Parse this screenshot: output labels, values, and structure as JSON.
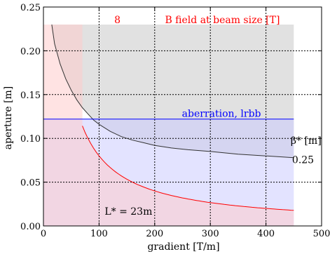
{
  "chart_data": {
    "type": "area",
    "xlabel": "gradient [T/m]",
    "ylabel": "aperture [m]",
    "xlim": [
      0,
      500
    ],
    "ylim": [
      0,
      0.25
    ],
    "xticks": [
      0,
      100,
      200,
      300,
      400,
      500
    ],
    "yticks": [
      0.0,
      0.05,
      0.1,
      0.15,
      0.2,
      0.25
    ],
    "xtick_labels": [
      "0",
      "100",
      "200",
      "300",
      "400",
      "500"
    ],
    "ytick_labels": [
      "0.00",
      "0.05",
      "0.10",
      "0.15",
      "0.20",
      "0.25"
    ],
    "grid": true,
    "series": [
      {
        "name": "B field at beam size [T]",
        "label": "8",
        "color": "#ff0000",
        "formula": "aperture = 8 / gradient",
        "x_range": [
          70,
          450
        ],
        "fill": "#ffcccc"
      },
      {
        "name": "aberration, lrbb",
        "color": "#0000ff",
        "y": 0.122,
        "x_range": [
          0,
          450
        ],
        "fill": "#ccccff"
      },
      {
        "name": "β* [m]",
        "label": "0.25",
        "color": "#333333",
        "x": [
          15,
          20,
          30,
          40,
          50,
          60,
          70,
          80,
          90,
          100,
          120,
          140,
          160,
          180,
          200,
          230,
          260,
          300,
          350,
          400,
          450
        ],
        "y": [
          0.23,
          0.208,
          0.185,
          0.168,
          0.155,
          0.144,
          0.135,
          0.128,
          0.121,
          0.116,
          0.108,
          0.102,
          0.098,
          0.095,
          0.092,
          0.089,
          0.087,
          0.085,
          0.082,
          0.08,
          0.078
        ],
        "fill": "#c8c8c8"
      }
    ],
    "region_ymax": 0.23,
    "region_xmax": 450,
    "annotations": [
      {
        "text": "8",
        "x": 72,
        "y": 0.23,
        "color": "#ff0000"
      },
      {
        "text": "B field at beam size [T]",
        "x": 420,
        "y": 0.23,
        "color": "#ff0000"
      },
      {
        "text": "aberration, lrbb",
        "x": 320,
        "y": 0.122,
        "color": "#0000ff"
      },
      {
        "text": "β* [m]",
        "x": 447,
        "y": 0.097,
        "color": "#000000"
      },
      {
        "text": "0.25",
        "x": 447,
        "y": 0.075,
        "color": "#000000"
      },
      {
        "text": "L* = 23m",
        "x": 110,
        "y": 0.013,
        "color": "#000000"
      }
    ]
  }
}
